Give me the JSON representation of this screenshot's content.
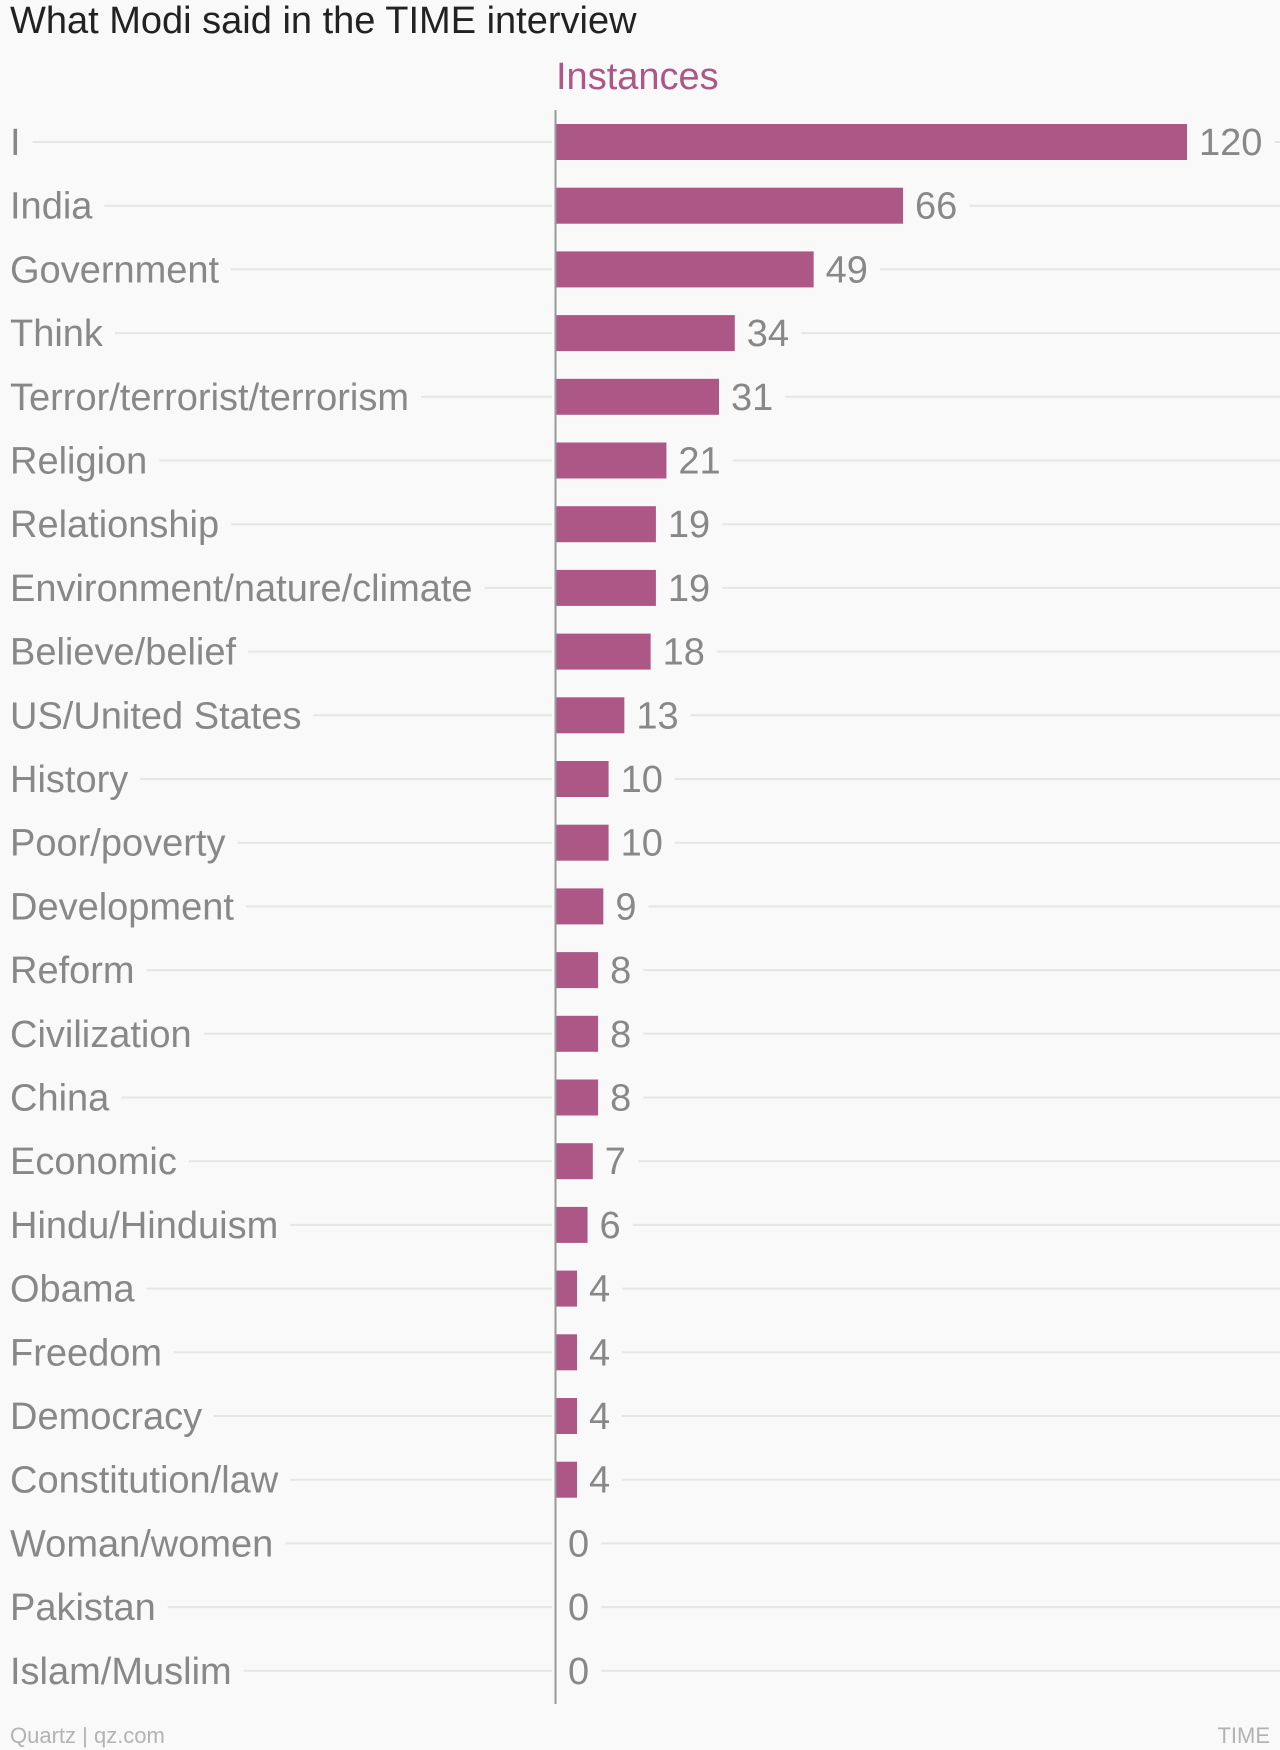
{
  "chart_data": {
    "type": "bar",
    "orientation": "horizontal",
    "title": "What Modi said in the TIME interview",
    "series": [
      {
        "name": "Instances",
        "color": "#ad5787",
        "values": [
          120,
          66,
          49,
          34,
          31,
          21,
          19,
          19,
          18,
          13,
          10,
          10,
          9,
          8,
          8,
          8,
          7,
          6,
          4,
          4,
          4,
          4,
          0,
          0,
          0
        ]
      }
    ],
    "categories": [
      "I",
      "India",
      "Government",
      "Think",
      "Terror/terrorist/terrorism",
      "Religion",
      "Relationship",
      "Environment/nature/climate",
      "Believe/belief",
      "US/United States",
      "History",
      "Poor/poverty",
      "Development",
      "Reform",
      "Civilization",
      "China",
      "Economic",
      "Hindu/Hinduism",
      "Obama",
      "Freedom",
      "Democracy",
      "Constitution/law",
      "Woman/women",
      "Pakistan",
      "Islam/Muslim"
    ],
    "xlim": [
      0,
      120
    ],
    "grid": true,
    "data_labels": true
  },
  "footer": {
    "source_left": "Quartz | qz.com",
    "source_right": "TIME"
  }
}
